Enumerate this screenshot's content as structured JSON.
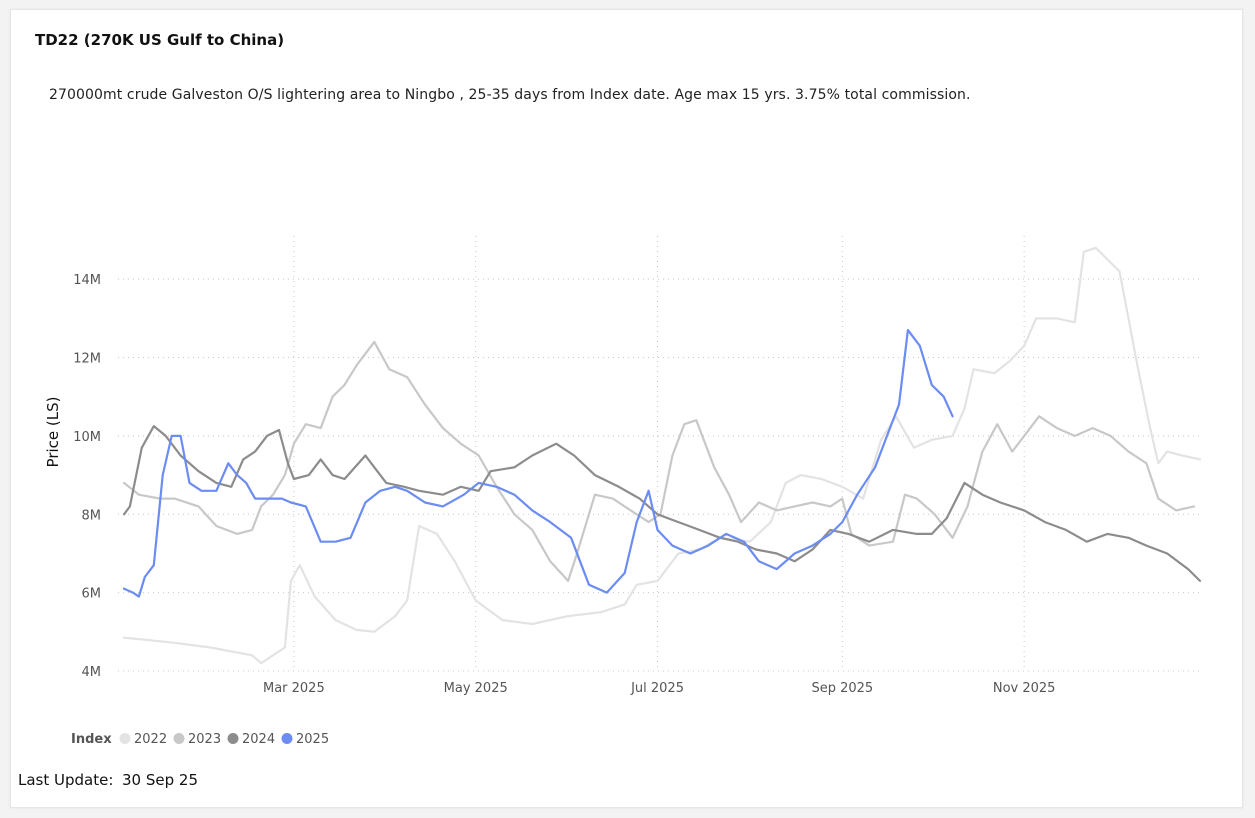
{
  "page": {
    "title": "TD22 (270K US Gulf to China)",
    "description": "270000mt crude Galveston O/S lightering area to Ningbo , 25-35 days from Index date. Age max 15 yrs. 3.75% total commission.",
    "last_update_label": "Last Update:",
    "last_update_value": "30 Sep 25"
  },
  "chart_data": {
    "type": "line",
    "ylabel": "Price (LS)",
    "ylim": [
      4000000,
      15000000
    ],
    "y_ticks": [
      {
        "value": 4000000,
        "label": "4M"
      },
      {
        "value": 6000000,
        "label": "6M"
      },
      {
        "value": 8000000,
        "label": "8M"
      },
      {
        "value": 10000000,
        "label": "10M"
      },
      {
        "value": 12000000,
        "label": "12M"
      },
      {
        "value": 14000000,
        "label": "14M"
      }
    ],
    "xlim": [
      "2025-01-01",
      "2025-12-31"
    ],
    "x_ticks": [
      {
        "value": "2025-03-01",
        "label": "Mar 2025"
      },
      {
        "value": "2025-05-01",
        "label": "May 2025"
      },
      {
        "value": "2025-07-01",
        "label": "Jul 2025"
      },
      {
        "value": "2025-09-01",
        "label": "Sep 2025"
      },
      {
        "value": "2025-11-01",
        "label": "Nov 2025"
      }
    ],
    "grid": true,
    "legend": {
      "title": "Index",
      "position": "bottom-left"
    },
    "series": [
      {
        "name": "2022",
        "color": "#e3e3e3",
        "points": [
          [
            "2025-01-03",
            4.85
          ],
          [
            "2025-01-10",
            4.8
          ],
          [
            "2025-01-20",
            4.72
          ],
          [
            "2025-02-01",
            4.6
          ],
          [
            "2025-02-08",
            4.5
          ],
          [
            "2025-02-15",
            4.4
          ],
          [
            "2025-02-18",
            4.2
          ],
          [
            "2025-02-22",
            4.4
          ],
          [
            "2025-02-26",
            4.6
          ],
          [
            "2025-02-28",
            6.3
          ],
          [
            "2025-03-03",
            6.7
          ],
          [
            "2025-03-08",
            5.9
          ],
          [
            "2025-03-15",
            5.3
          ],
          [
            "2025-03-22",
            5.05
          ],
          [
            "2025-03-28",
            5.0
          ],
          [
            "2025-04-04",
            5.4
          ],
          [
            "2025-04-08",
            5.8
          ],
          [
            "2025-04-12",
            7.7
          ],
          [
            "2025-04-18",
            7.5
          ],
          [
            "2025-04-24",
            6.8
          ],
          [
            "2025-05-01",
            5.8
          ],
          [
            "2025-05-10",
            5.3
          ],
          [
            "2025-05-20",
            5.2
          ],
          [
            "2025-06-01",
            5.4
          ],
          [
            "2025-06-12",
            5.5
          ],
          [
            "2025-06-20",
            5.7
          ],
          [
            "2025-06-24",
            6.2
          ],
          [
            "2025-07-01",
            6.3
          ],
          [
            "2025-07-08",
            7.0
          ],
          [
            "2025-07-15",
            7.1
          ],
          [
            "2025-07-22",
            7.4
          ],
          [
            "2025-08-01",
            7.3
          ],
          [
            "2025-08-08",
            7.8
          ],
          [
            "2025-08-13",
            8.8
          ],
          [
            "2025-08-18",
            9.0
          ],
          [
            "2025-08-25",
            8.9
          ],
          [
            "2025-09-01",
            8.7
          ],
          [
            "2025-09-08",
            8.4
          ],
          [
            "2025-09-14",
            9.9
          ],
          [
            "2025-09-19",
            10.5
          ],
          [
            "2025-09-25",
            9.7
          ],
          [
            "2025-10-01",
            9.9
          ],
          [
            "2025-10-08",
            10.0
          ],
          [
            "2025-10-12",
            10.7
          ],
          [
            "2025-10-15",
            11.7
          ],
          [
            "2025-10-22",
            11.6
          ],
          [
            "2025-10-27",
            11.9
          ],
          [
            "2025-11-01",
            12.3
          ],
          [
            "2025-11-05",
            13.0
          ],
          [
            "2025-11-12",
            13.0
          ],
          [
            "2025-11-18",
            12.9
          ],
          [
            "2025-11-21",
            14.7
          ],
          [
            "2025-11-25",
            14.8
          ],
          [
            "2025-11-29",
            14.5
          ],
          [
            "2025-12-03",
            14.2
          ],
          [
            "2025-12-06",
            13.0
          ],
          [
            "2025-12-09",
            11.8
          ],
          [
            "2025-12-13",
            10.3
          ],
          [
            "2025-12-16",
            9.3
          ],
          [
            "2025-12-19",
            9.6
          ],
          [
            "2025-12-24",
            9.5
          ],
          [
            "2025-12-30",
            9.4
          ]
        ]
      },
      {
        "name": "2023",
        "color": "#c8c8c8",
        "points": [
          [
            "2025-01-03",
            8.8
          ],
          [
            "2025-01-08",
            8.5
          ],
          [
            "2025-01-15",
            8.4
          ],
          [
            "2025-01-20",
            8.4
          ],
          [
            "2025-01-28",
            8.2
          ],
          [
            "2025-02-03",
            7.7
          ],
          [
            "2025-02-10",
            7.5
          ],
          [
            "2025-02-15",
            7.6
          ],
          [
            "2025-02-18",
            8.2
          ],
          [
            "2025-02-22",
            8.5
          ],
          [
            "2025-02-26",
            9.0
          ],
          [
            "2025-03-01",
            9.8
          ],
          [
            "2025-03-05",
            10.3
          ],
          [
            "2025-03-10",
            10.2
          ],
          [
            "2025-03-14",
            11.0
          ],
          [
            "2025-03-18",
            11.3
          ],
          [
            "2025-03-22",
            11.8
          ],
          [
            "2025-03-28",
            12.4
          ],
          [
            "2025-04-02",
            11.7
          ],
          [
            "2025-04-08",
            11.5
          ],
          [
            "2025-04-14",
            10.8
          ],
          [
            "2025-04-20",
            10.2
          ],
          [
            "2025-04-26",
            9.8
          ],
          [
            "2025-05-02",
            9.5
          ],
          [
            "2025-05-08",
            8.7
          ],
          [
            "2025-05-14",
            8.0
          ],
          [
            "2025-05-20",
            7.6
          ],
          [
            "2025-05-26",
            6.8
          ],
          [
            "2025-06-01",
            6.3
          ],
          [
            "2025-06-04",
            7.0
          ],
          [
            "2025-06-10",
            8.5
          ],
          [
            "2025-06-16",
            8.4
          ],
          [
            "2025-06-22",
            8.1
          ],
          [
            "2025-06-28",
            7.8
          ],
          [
            "2025-07-02",
            8.0
          ],
          [
            "2025-07-06",
            9.5
          ],
          [
            "2025-07-10",
            10.3
          ],
          [
            "2025-07-14",
            10.4
          ],
          [
            "2025-07-20",
            9.2
          ],
          [
            "2025-07-25",
            8.5
          ],
          [
            "2025-07-29",
            7.8
          ],
          [
            "2025-08-04",
            8.3
          ],
          [
            "2025-08-10",
            8.1
          ],
          [
            "2025-08-16",
            8.2
          ],
          [
            "2025-08-22",
            8.3
          ],
          [
            "2025-08-28",
            8.2
          ],
          [
            "2025-09-01",
            8.4
          ],
          [
            "2025-09-04",
            7.5
          ],
          [
            "2025-09-10",
            7.2
          ],
          [
            "2025-09-18",
            7.3
          ],
          [
            "2025-09-22",
            8.5
          ],
          [
            "2025-09-26",
            8.4
          ],
          [
            "2025-10-02",
            8.0
          ],
          [
            "2025-10-08",
            7.4
          ],
          [
            "2025-10-13",
            8.2
          ],
          [
            "2025-10-18",
            9.6
          ],
          [
            "2025-10-23",
            10.3
          ],
          [
            "2025-10-28",
            9.6
          ],
          [
            "2025-11-01",
            10.0
          ],
          [
            "2025-11-06",
            10.5
          ],
          [
            "2025-11-12",
            10.2
          ],
          [
            "2025-11-18",
            10.0
          ],
          [
            "2025-11-24",
            10.2
          ],
          [
            "2025-11-30",
            10.0
          ],
          [
            "2025-12-06",
            9.6
          ],
          [
            "2025-12-12",
            9.3
          ],
          [
            "2025-12-16",
            8.4
          ],
          [
            "2025-12-22",
            8.1
          ],
          [
            "2025-12-28",
            8.2
          ]
        ]
      },
      {
        "name": "2024",
        "color": "#8c8c8c",
        "points": [
          [
            "2025-01-03",
            8.0
          ],
          [
            "2025-01-05",
            8.2
          ],
          [
            "2025-01-09",
            9.7
          ],
          [
            "2025-01-13",
            10.25
          ],
          [
            "2025-01-17",
            10.0
          ],
          [
            "2025-01-22",
            9.5
          ],
          [
            "2025-01-28",
            9.1
          ],
          [
            "2025-02-03",
            8.8
          ],
          [
            "2025-02-08",
            8.7
          ],
          [
            "2025-02-12",
            9.4
          ],
          [
            "2025-02-16",
            9.6
          ],
          [
            "2025-02-20",
            10.0
          ],
          [
            "2025-02-24",
            10.15
          ],
          [
            "2025-02-27",
            9.3
          ],
          [
            "2025-03-01",
            8.9
          ],
          [
            "2025-03-06",
            9.0
          ],
          [
            "2025-03-10",
            9.4
          ],
          [
            "2025-03-14",
            9.0
          ],
          [
            "2025-03-18",
            8.9
          ],
          [
            "2025-03-25",
            9.5
          ],
          [
            "2025-03-28",
            9.2
          ],
          [
            "2025-04-01",
            8.8
          ],
          [
            "2025-04-07",
            8.7
          ],
          [
            "2025-04-12",
            8.6
          ],
          [
            "2025-04-20",
            8.5
          ],
          [
            "2025-04-26",
            8.7
          ],
          [
            "2025-05-02",
            8.6
          ],
          [
            "2025-05-06",
            9.1
          ],
          [
            "2025-05-14",
            9.2
          ],
          [
            "2025-05-20",
            9.5
          ],
          [
            "2025-05-28",
            9.8
          ],
          [
            "2025-06-03",
            9.5
          ],
          [
            "2025-06-10",
            9.0
          ],
          [
            "2025-06-18",
            8.7
          ],
          [
            "2025-06-25",
            8.4
          ],
          [
            "2025-07-01",
            8.0
          ],
          [
            "2025-07-08",
            7.8
          ],
          [
            "2025-07-15",
            7.6
          ],
          [
            "2025-07-22",
            7.4
          ],
          [
            "2025-07-28",
            7.3
          ],
          [
            "2025-08-03",
            7.1
          ],
          [
            "2025-08-10",
            7.0
          ],
          [
            "2025-08-16",
            6.8
          ],
          [
            "2025-08-22",
            7.1
          ],
          [
            "2025-08-28",
            7.6
          ],
          [
            "2025-09-03",
            7.5
          ],
          [
            "2025-09-10",
            7.3
          ],
          [
            "2025-09-18",
            7.6
          ],
          [
            "2025-09-26",
            7.5
          ],
          [
            "2025-10-01",
            7.5
          ],
          [
            "2025-10-06",
            7.9
          ],
          [
            "2025-10-12",
            8.8
          ],
          [
            "2025-10-18",
            8.5
          ],
          [
            "2025-10-24",
            8.3
          ],
          [
            "2025-11-01",
            8.1
          ],
          [
            "2025-11-08",
            7.8
          ],
          [
            "2025-11-15",
            7.6
          ],
          [
            "2025-11-22",
            7.3
          ],
          [
            "2025-11-29",
            7.5
          ],
          [
            "2025-12-06",
            7.4
          ],
          [
            "2025-12-12",
            7.2
          ],
          [
            "2025-12-19",
            7.0
          ],
          [
            "2025-12-26",
            6.6
          ],
          [
            "2025-12-30",
            6.3
          ]
        ]
      },
      {
        "name": "2025",
        "color": "#6b8cf2",
        "points": [
          [
            "2025-01-03",
            6.1
          ],
          [
            "2025-01-06",
            6.0
          ],
          [
            "2025-01-08",
            5.9
          ],
          [
            "2025-01-10",
            6.4
          ],
          [
            "2025-01-13",
            6.7
          ],
          [
            "2025-01-16",
            9.0
          ],
          [
            "2025-01-19",
            10.0
          ],
          [
            "2025-01-22",
            10.0
          ],
          [
            "2025-01-25",
            8.8
          ],
          [
            "2025-01-29",
            8.6
          ],
          [
            "2025-02-03",
            8.6
          ],
          [
            "2025-02-07",
            9.3
          ],
          [
            "2025-02-10",
            9.0
          ],
          [
            "2025-02-13",
            8.8
          ],
          [
            "2025-02-16",
            8.4
          ],
          [
            "2025-02-20",
            8.4
          ],
          [
            "2025-02-25",
            8.4
          ],
          [
            "2025-02-28",
            8.3
          ],
          [
            "2025-03-05",
            8.2
          ],
          [
            "2025-03-10",
            7.3
          ],
          [
            "2025-03-15",
            7.3
          ],
          [
            "2025-03-20",
            7.4
          ],
          [
            "2025-03-25",
            8.3
          ],
          [
            "2025-03-30",
            8.6
          ],
          [
            "2025-04-04",
            8.7
          ],
          [
            "2025-04-08",
            8.6
          ],
          [
            "2025-04-14",
            8.3
          ],
          [
            "2025-04-20",
            8.2
          ],
          [
            "2025-04-27",
            8.5
          ],
          [
            "2025-05-02",
            8.8
          ],
          [
            "2025-05-08",
            8.7
          ],
          [
            "2025-05-14",
            8.5
          ],
          [
            "2025-05-20",
            8.1
          ],
          [
            "2025-05-26",
            7.8
          ],
          [
            "2025-06-02",
            7.4
          ],
          [
            "2025-06-08",
            6.2
          ],
          [
            "2025-06-14",
            6.0
          ],
          [
            "2025-06-20",
            6.5
          ],
          [
            "2025-06-24",
            7.8
          ],
          [
            "2025-06-28",
            8.6
          ],
          [
            "2025-07-01",
            7.6
          ],
          [
            "2025-07-06",
            7.2
          ],
          [
            "2025-07-12",
            7.0
          ],
          [
            "2025-07-18",
            7.2
          ],
          [
            "2025-07-24",
            7.5
          ],
          [
            "2025-07-30",
            7.3
          ],
          [
            "2025-08-04",
            6.8
          ],
          [
            "2025-08-10",
            6.6
          ],
          [
            "2025-08-16",
            7.0
          ],
          [
            "2025-08-22",
            7.2
          ],
          [
            "2025-08-28",
            7.5
          ],
          [
            "2025-09-01",
            7.8
          ],
          [
            "2025-09-06",
            8.5
          ],
          [
            "2025-09-12",
            9.2
          ],
          [
            "2025-09-16",
            10.0
          ],
          [
            "2025-09-20",
            10.8
          ],
          [
            "2025-09-23",
            12.7
          ],
          [
            "2025-09-27",
            12.3
          ],
          [
            "2025-10-01",
            11.3
          ],
          [
            "2025-10-05",
            11.0
          ],
          [
            "2025-10-08",
            10.5
          ]
        ]
      }
    ]
  }
}
